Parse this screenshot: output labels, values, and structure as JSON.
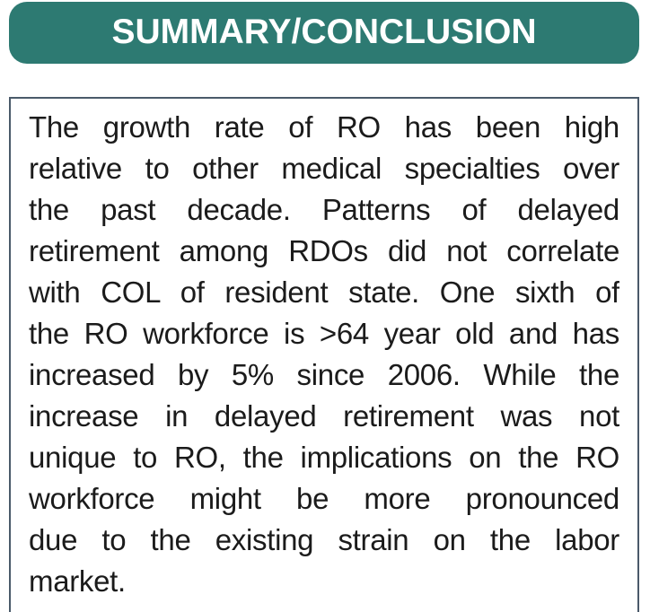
{
  "header": {
    "title": "SUMMARY/CONCLUSION",
    "background_color": "#2D7A72",
    "text_color": "#FFFFFF"
  },
  "body": {
    "border_color": "#4A5A6A",
    "text_color": "#1B1B1B",
    "paragraph": "The growth rate of RO has been high relative to other medical specialties over the past decade. Patterns of delayed retirement among RDOs did not correlate with COL of resident state. One sixth of the RO workforce is >64 year old and has increased by 5% since 2006. While the increase in delayed retirement was not unique to RO, the implications on the RO workforce might be more pronounced due to the existing strain on the labor market.",
    "lines": [
      "The growth rate of RO has been high",
      "relative to other medical specialties over",
      "the past decade. Patterns of delayed",
      "retirement among RDOs did not correlate",
      "with COL of resident state. One sixth of",
      "the RO workforce is >64 year old and has",
      "increased by 5% since 2006. While the",
      "increase in delayed retirement was not",
      "unique to RO, the implications on the RO",
      "workforce might be more pronounced",
      "due to the existing strain on the labor",
      "market."
    ]
  }
}
